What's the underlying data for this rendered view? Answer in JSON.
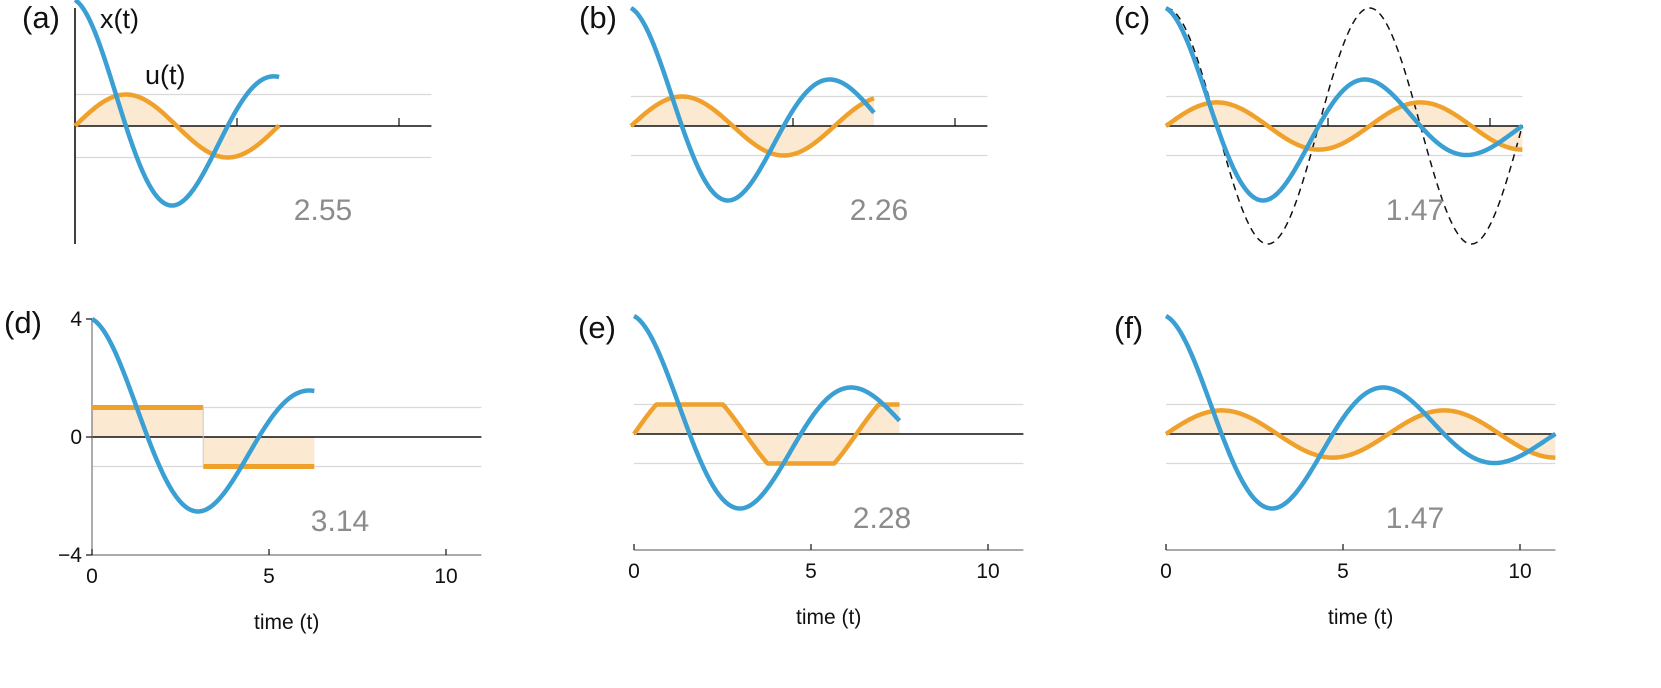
{
  "colors": {
    "x_series": "#3a9fd2",
    "u_series": "#f0a12c",
    "fill": "#fbe9d2",
    "reference": "#111111",
    "axis": "#111111",
    "guide": "#d9d9d9",
    "cost_text": "#8c8c8c"
  },
  "chart_data": [
    {
      "panel": "(a)",
      "type": "line",
      "control": "smooth",
      "cost_label": "2.55",
      "t_end": 6.3,
      "series_labels": {
        "x": "x(t)",
        "u": "u(t)"
      },
      "xlim": [
        0,
        11
      ],
      "ylim": [
        -4,
        4
      ],
      "guide_levels": [
        1,
        -1
      ],
      "show_x_axis_ticks": false,
      "x_ticks": [
        5,
        10
      ],
      "y_ticks": [],
      "series": [
        {
          "name": "x(t)",
          "x0": 4
        },
        {
          "name": "u(t)",
          "amplitude": 1
        }
      ],
      "xlabel": ""
    },
    {
      "panel": "(b)",
      "type": "line",
      "control": "smooth",
      "cost_label": "2.26",
      "t_end": 7.5,
      "xlim": [
        0,
        11
      ],
      "ylim": [
        -4,
        4
      ],
      "guide_levels": [
        1,
        -1
      ],
      "show_x_axis_ticks": false,
      "x_ticks": [
        5,
        10
      ],
      "y_ticks": [],
      "series": [
        {
          "name": "x(t)",
          "x0": 4
        },
        {
          "name": "u(t)",
          "amplitude": 1
        }
      ],
      "xlabel": ""
    },
    {
      "panel": "(c)",
      "type": "line",
      "control": "smooth",
      "cost_label": "1.47",
      "t_end": 11,
      "reference_amplitude": 4,
      "xlim": [
        0,
        11
      ],
      "ylim": [
        -4,
        4
      ],
      "guide_levels": [
        1,
        -1
      ],
      "show_x_axis_ticks": false,
      "x_ticks": [
        5,
        10
      ],
      "y_ticks": [],
      "series": [
        {
          "name": "x(t)",
          "x0": 4
        },
        {
          "name": "u(t)",
          "amplitude": 0.8
        }
      ],
      "xlabel": ""
    },
    {
      "panel": "(d)",
      "type": "line",
      "control": "bang-bang",
      "cost_label": "3.14",
      "t_end": 6.28,
      "xlim": [
        0,
        11
      ],
      "ylim": [
        -4,
        4
      ],
      "guide_levels": [
        1,
        -1
      ],
      "show_x_axis_ticks": true,
      "x_ticks": [
        0,
        5,
        10
      ],
      "x_tick_labels": [
        "0",
        "5",
        "10"
      ],
      "y_ticks": [
        4,
        0,
        -4
      ],
      "y_tick_labels": [
        "4",
        "0",
        "−4"
      ],
      "series": [
        {
          "name": "x(t)",
          "x0": 4
        },
        {
          "name": "u(t)",
          "amplitude": 1
        }
      ],
      "xlabel": "time (t)"
    },
    {
      "panel": "(e)",
      "type": "line",
      "control": "saturated",
      "cost_label": "2.28",
      "t_end": 7.5,
      "xlim": [
        0,
        11
      ],
      "ylim": [
        -4,
        4
      ],
      "guide_levels": [
        1,
        -1
      ],
      "show_x_axis_ticks": true,
      "x_ticks": [
        0,
        5,
        10
      ],
      "x_tick_labels": [
        "0",
        "5",
        "10"
      ],
      "y_ticks": [],
      "series": [
        {
          "name": "x(t)",
          "x0": 4
        },
        {
          "name": "u(t)",
          "amplitude": 1
        }
      ],
      "xlabel": "time (t)"
    },
    {
      "panel": "(f)",
      "type": "line",
      "control": "smooth",
      "cost_label": "1.47",
      "t_end": 11,
      "xlim": [
        0,
        11
      ],
      "ylim": [
        -4,
        4
      ],
      "guide_levels": [
        1,
        -1
      ],
      "show_x_axis_ticks": true,
      "x_ticks": [
        0,
        5,
        10
      ],
      "x_tick_labels": [
        "0",
        "5",
        "10"
      ],
      "y_ticks": [],
      "series": [
        {
          "name": "x(t)",
          "x0": 4
        },
        {
          "name": "u(t)",
          "amplitude": 0.8
        }
      ],
      "xlabel": "time (t)"
    }
  ]
}
